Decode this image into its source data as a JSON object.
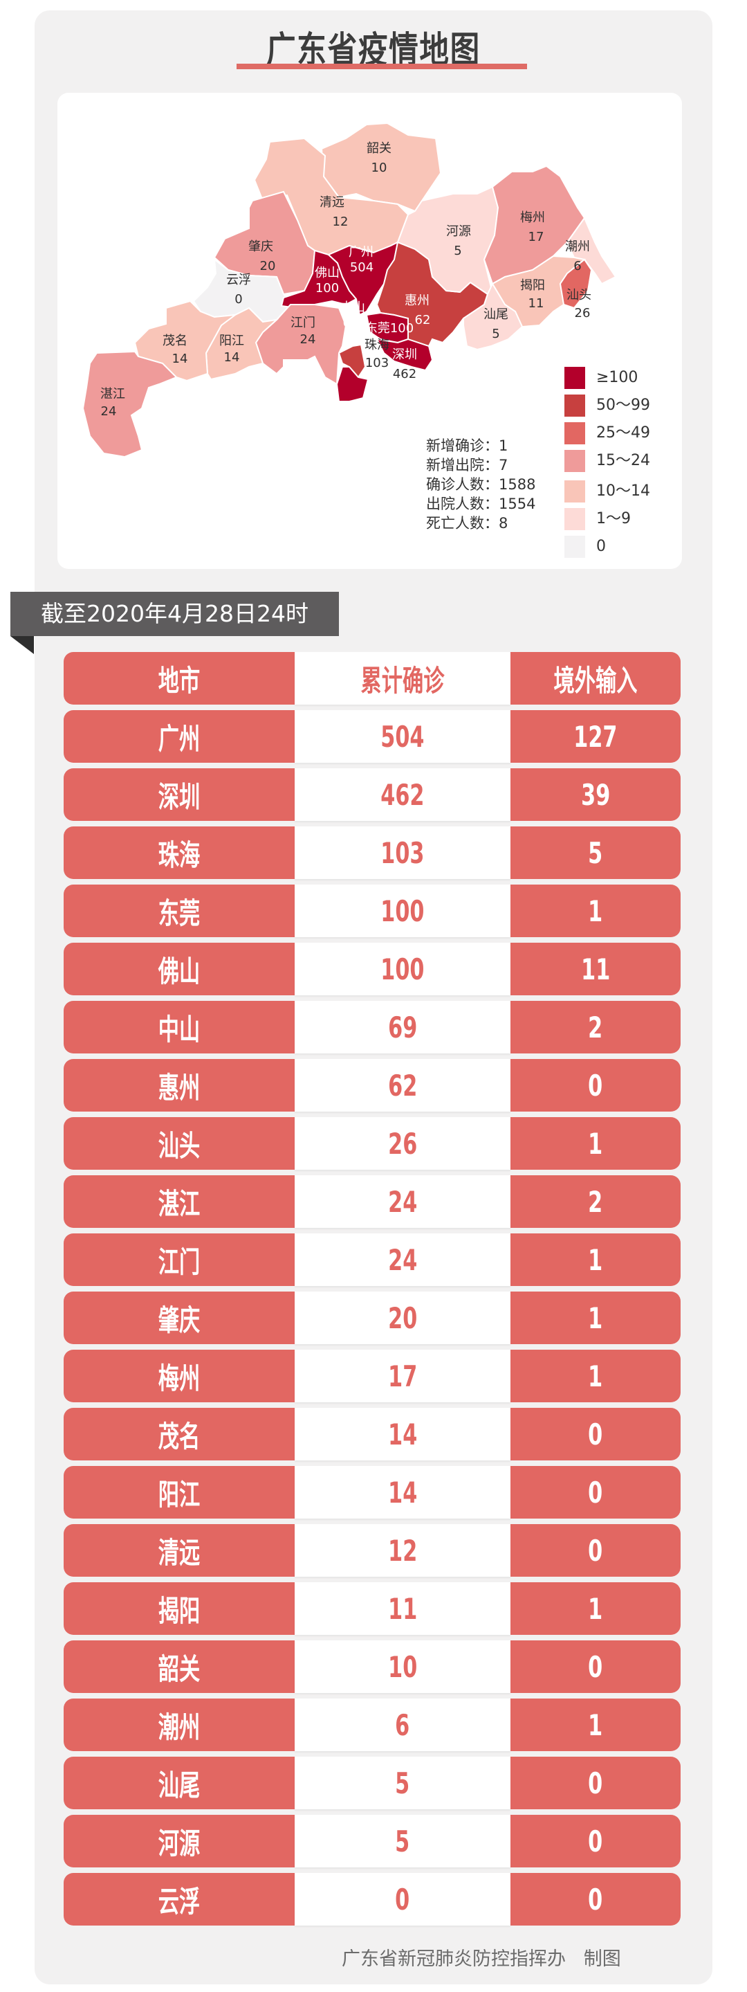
{
  "title": "广东省疫情地图",
  "colors": {
    "accent": "#e26762",
    "bins": [
      "#b3002b",
      "#c7403f",
      "#e26762",
      "#ef9b9a",
      "#f9c5b8",
      "#fddbd7",
      "#f3f2f3"
    ]
  },
  "map": {
    "regions": [
      {
        "name": "韶关",
        "value": "10"
      },
      {
        "name": "清远",
        "value": "12"
      },
      {
        "name": "肇庆",
        "value": "20"
      },
      {
        "name": "云浮",
        "value": "0"
      },
      {
        "name": "佛山",
        "value": "100"
      },
      {
        "name": "广州",
        "value": "504"
      },
      {
        "name": "惠州",
        "value": "62"
      },
      {
        "name": "东莞",
        "value": "100"
      },
      {
        "name": "深圳",
        "value": "462"
      },
      {
        "name": "中山",
        "value": "69"
      },
      {
        "name": "珠海",
        "value": "103"
      },
      {
        "name": "江门",
        "value": "24"
      },
      {
        "name": "阳江",
        "value": "14"
      },
      {
        "name": "茂名",
        "value": "14"
      },
      {
        "name": "湛江",
        "value": "24"
      },
      {
        "name": "河源",
        "value": "5"
      },
      {
        "name": "梅州",
        "value": "17"
      },
      {
        "name": "潮州",
        "value": "6"
      },
      {
        "name": "揭阳",
        "value": "11"
      },
      {
        "name": "汕头",
        "value": "26"
      },
      {
        "name": "汕尾",
        "value": "5"
      }
    ],
    "legend": [
      "≥100",
      "50～99",
      "25～49",
      "15～24",
      "10～14",
      "1～9",
      "0"
    ],
    "stats": [
      "新增确诊：1",
      "新增出院：7",
      "确诊人数：1588",
      "出院人数：1554",
      "死亡人数：8"
    ]
  },
  "date_label": "截至2020年4月28日24时",
  "table": {
    "headers": [
      "地市",
      "累计确诊",
      "境外输入"
    ],
    "rows": [
      [
        "广州",
        "504",
        "127"
      ],
      [
        "深圳",
        "462",
        "39"
      ],
      [
        "珠海",
        "103",
        "5"
      ],
      [
        "东莞",
        "100",
        "1"
      ],
      [
        "佛山",
        "100",
        "11"
      ],
      [
        "中山",
        "69",
        "2"
      ],
      [
        "惠州",
        "62",
        "0"
      ],
      [
        "汕头",
        "26",
        "1"
      ],
      [
        "湛江",
        "24",
        "2"
      ],
      [
        "江门",
        "24",
        "1"
      ],
      [
        "肇庆",
        "20",
        "1"
      ],
      [
        "梅州",
        "17",
        "1"
      ],
      [
        "茂名",
        "14",
        "0"
      ],
      [
        "阳江",
        "14",
        "0"
      ],
      [
        "清远",
        "12",
        "0"
      ],
      [
        "揭阳",
        "11",
        "1"
      ],
      [
        "韶关",
        "10",
        "0"
      ],
      [
        "潮州",
        "6",
        "1"
      ],
      [
        "汕尾",
        "5",
        "0"
      ],
      [
        "河源",
        "5",
        "0"
      ],
      [
        "云浮",
        "0",
        "0"
      ]
    ]
  },
  "footer": {
    "org": "广东省新冠肺炎防控指挥办",
    "suffix": "制图"
  }
}
